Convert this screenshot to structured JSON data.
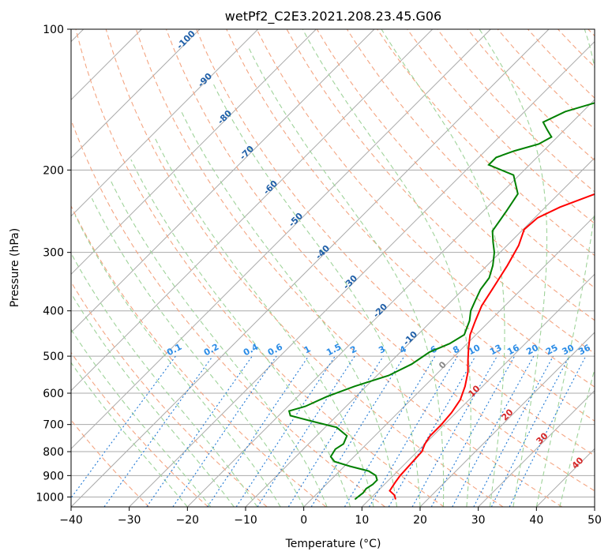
{
  "chart_data": {
    "type": "line",
    "title": "wetPf2_C2E3.2021.208.23.45.G06",
    "xlabel": "Temperature (°C)",
    "ylabel": "Pressure (hPa)",
    "xlim": [
      -40,
      50
    ],
    "ylim": [
      1050,
      100
    ],
    "y_scale": "log",
    "x_ticks": [
      "−40",
      "−30",
      "−20",
      "−10",
      "0",
      "10",
      "20",
      "30",
      "40",
      "50"
    ],
    "y_ticks": [
      "100",
      "200",
      "300",
      "400",
      "500",
      "600",
      "700",
      "800",
      "900",
      "1000"
    ],
    "grid": true,
    "series": [
      {
        "color": "#ff0000",
        "points": [
          [
            14.5,
            1012
          ],
          [
            13.5,
            990
          ],
          [
            12,
            970
          ],
          [
            11.5,
            930
          ],
          [
            11.2,
            900
          ],
          [
            11,
            850
          ],
          [
            10.8,
            800
          ],
          [
            10,
            770
          ],
          [
            9.5,
            740
          ],
          [
            9.5,
            700
          ],
          [
            9.2,
            660
          ],
          [
            8.5,
            620
          ],
          [
            7,
            580
          ],
          [
            5,
            540
          ],
          [
            3,
            510
          ],
          [
            1,
            480
          ],
          [
            -1,
            450
          ],
          [
            -2.5,
            420
          ],
          [
            -4,
            390
          ],
          [
            -5,
            360
          ],
          [
            -6.5,
            320
          ],
          [
            -8,
            290
          ],
          [
            -9.8,
            268
          ],
          [
            -9.5,
            253
          ],
          [
            -7.5,
            240
          ],
          [
            -4,
            226
          ],
          [
            0,
            214
          ],
          [
            2.5,
            203
          ],
          [
            4,
            190
          ],
          [
            6,
            175
          ],
          [
            8,
            160
          ],
          [
            11,
            145
          ],
          [
            15,
            130
          ],
          [
            19,
            117
          ],
          [
            22,
            108
          ],
          [
            25,
            100
          ]
        ]
      },
      {
        "color": "#008000",
        "points": [
          [
            7.5,
            1012
          ],
          [
            7.6,
            1000
          ],
          [
            7.8,
            980
          ],
          [
            7.6,
            960
          ],
          [
            8,
            940
          ],
          [
            8,
            920
          ],
          [
            7,
            900
          ],
          [
            5,
            880
          ],
          [
            1,
            860
          ],
          [
            -2.5,
            840
          ],
          [
            -4,
            820
          ],
          [
            -4.5,
            790
          ],
          [
            -4,
            770
          ],
          [
            -4.8,
            740
          ],
          [
            -8,
            710
          ],
          [
            -13,
            690
          ],
          [
            -18,
            670
          ],
          [
            -19,
            655
          ],
          [
            -17,
            640
          ],
          [
            -15,
            610
          ],
          [
            -12,
            580
          ],
          [
            -8,
            550
          ],
          [
            -6,
            520
          ],
          [
            -5,
            490
          ],
          [
            -3,
            470
          ],
          [
            -2,
            450
          ],
          [
            -3.5,
            420
          ],
          [
            -5,
            400
          ],
          [
            -6,
            380
          ],
          [
            -7,
            360
          ],
          [
            -7.5,
            340
          ],
          [
            -9,
            320
          ],
          [
            -11,
            300
          ],
          [
            -13,
            285
          ],
          [
            -15,
            270
          ],
          [
            -16,
            245
          ],
          [
            -17,
            225
          ],
          [
            -21,
            205
          ],
          [
            -27,
            195
          ],
          [
            -27,
            188
          ],
          [
            -25,
            182
          ],
          [
            -22,
            176
          ],
          [
            -21,
            170
          ],
          [
            -23,
            164
          ],
          [
            -25,
            158
          ],
          [
            -23,
            150
          ],
          [
            -19,
            143
          ],
          [
            -17,
            130
          ],
          [
            -15,
            120
          ],
          [
            -11,
            112
          ],
          [
            -6,
            107
          ],
          [
            -3,
            102
          ],
          [
            -2,
            100
          ]
        ]
      }
    ],
    "dry_adiabat_labels": [
      "-100",
      "-90",
      "-80",
      "-70",
      "-60",
      "-50",
      "-40",
      "-30",
      "-20",
      "-10"
    ],
    "mixing_ratio_labels": [
      "0.1",
      "0.2",
      "0.4",
      "0.6",
      "1",
      "1.5",
      "2",
      "3",
      "4",
      "6",
      "8",
      "10",
      "13",
      "16",
      "20",
      "25",
      "30",
      "36"
    ],
    "moist_adiabat_labels": [
      "0",
      "10",
      "20",
      "30",
      "40"
    ]
  },
  "colors": {
    "temperature": "#ff0000",
    "dewpoint": "#008000",
    "dry_adiabats": "#f4a582",
    "moist_adiabats": "#9fd39a",
    "mixing_ratio": "#1f78d4",
    "isotherms": "#aaaaaa",
    "dry_adiabat_label": "#1f5fa8",
    "mixing_label": "#2b8ce6",
    "moist_label_zero": "#888888",
    "moist_label": "#d62728"
  }
}
